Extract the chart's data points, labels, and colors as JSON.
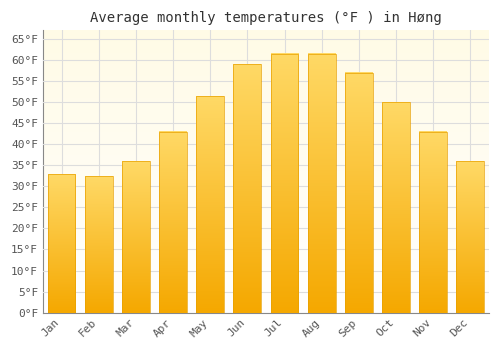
{
  "title": "Average monthly temperatures (°F ) in Høng",
  "months": [
    "Jan",
    "Feb",
    "Mar",
    "Apr",
    "May",
    "Jun",
    "Jul",
    "Aug",
    "Sep",
    "Oct",
    "Nov",
    "Dec"
  ],
  "values": [
    33,
    32.5,
    36,
    43,
    51.5,
    59,
    61.5,
    61.5,
    57,
    50,
    43,
    36
  ],
  "bar_color_bottom": "#F5A800",
  "bar_color_top": "#FFD966",
  "background_color": "#FFFFFF",
  "background_gradient_top": "#FFFFFF",
  "background_gradient_bottom": "#FFFBE6",
  "grid_color": "#DDDDDD",
  "yticks": [
    0,
    5,
    10,
    15,
    20,
    25,
    30,
    35,
    40,
    45,
    50,
    55,
    60,
    65
  ],
  "ylim": [
    0,
    67
  ],
  "title_fontsize": 10,
  "tick_fontsize": 8,
  "font_family": "monospace"
}
